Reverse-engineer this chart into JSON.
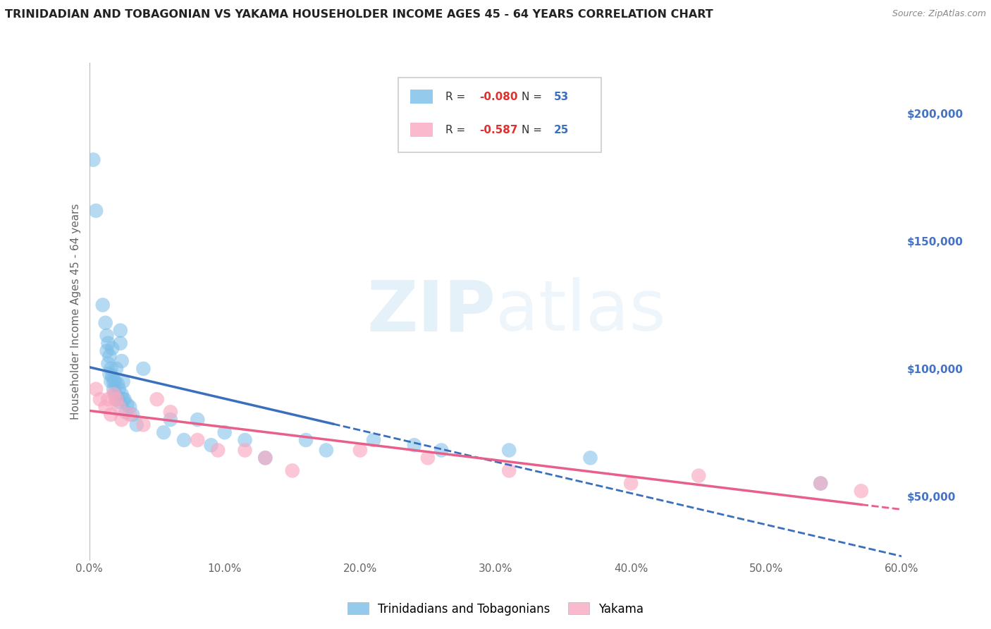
{
  "title": "TRINIDADIAN AND TOBAGONIAN VS YAKAMA HOUSEHOLDER INCOME AGES 45 - 64 YEARS CORRELATION CHART",
  "source": "Source: ZipAtlas.com",
  "ylabel": "Householder Income Ages 45 - 64 years",
  "xlim": [
    0.0,
    0.6
  ],
  "ylim": [
    25000,
    220000
  ],
  "yticks": [
    50000,
    100000,
    150000,
    200000
  ],
  "ytick_labels": [
    "$50,000",
    "$100,000",
    "$150,000",
    "$200,000"
  ],
  "xticks": [
    0.0,
    0.1,
    0.2,
    0.3,
    0.4,
    0.5,
    0.6
  ],
  "xtick_labels": [
    "0.0%",
    "10.0%",
    "20.0%",
    "30.0%",
    "40.0%",
    "50.0%",
    "60.0%"
  ],
  "blue_R": -0.08,
  "blue_N": 53,
  "pink_R": -0.587,
  "pink_N": 25,
  "blue_color": "#7abde8",
  "pink_color": "#f9a8c0",
  "blue_line_color": "#3a6fbe",
  "pink_line_color": "#e8608a",
  "legend_label_blue": "Trinidadians and Tobagonians",
  "legend_label_pink": "Yakama",
  "blue_scatter_x": [
    0.003,
    0.005,
    0.01,
    0.012,
    0.013,
    0.013,
    0.014,
    0.014,
    0.015,
    0.015,
    0.016,
    0.016,
    0.017,
    0.017,
    0.018,
    0.018,
    0.019,
    0.019,
    0.02,
    0.02,
    0.021,
    0.021,
    0.022,
    0.022,
    0.023,
    0.023,
    0.024,
    0.024,
    0.025,
    0.025,
    0.026,
    0.027,
    0.028,
    0.03,
    0.032,
    0.035,
    0.04,
    0.055,
    0.06,
    0.07,
    0.08,
    0.09,
    0.1,
    0.115,
    0.13,
    0.16,
    0.175,
    0.21,
    0.24,
    0.26,
    0.31,
    0.37,
    0.54
  ],
  "blue_scatter_y": [
    182000,
    162000,
    125000,
    118000,
    113000,
    107000,
    110000,
    102000,
    98000,
    105000,
    100000,
    95000,
    97000,
    108000,
    95000,
    92000,
    95000,
    90000,
    100000,
    88000,
    94000,
    89000,
    92000,
    87000,
    115000,
    110000,
    103000,
    90000,
    88000,
    95000,
    88000,
    83000,
    86000,
    85000,
    82000,
    78000,
    100000,
    75000,
    80000,
    72000,
    80000,
    70000,
    75000,
    72000,
    65000,
    72000,
    68000,
    72000,
    70000,
    68000,
    68000,
    65000,
    55000
  ],
  "pink_scatter_x": [
    0.005,
    0.008,
    0.012,
    0.014,
    0.016,
    0.018,
    0.02,
    0.022,
    0.024,
    0.03,
    0.04,
    0.05,
    0.06,
    0.08,
    0.095,
    0.115,
    0.13,
    0.15,
    0.2,
    0.25,
    0.31,
    0.4,
    0.45,
    0.54,
    0.57
  ],
  "pink_scatter_y": [
    92000,
    88000,
    85000,
    88000,
    82000,
    90000,
    88000,
    85000,
    80000,
    82000,
    78000,
    88000,
    83000,
    72000,
    68000,
    68000,
    65000,
    60000,
    68000,
    65000,
    60000,
    55000,
    58000,
    55000,
    52000
  ]
}
